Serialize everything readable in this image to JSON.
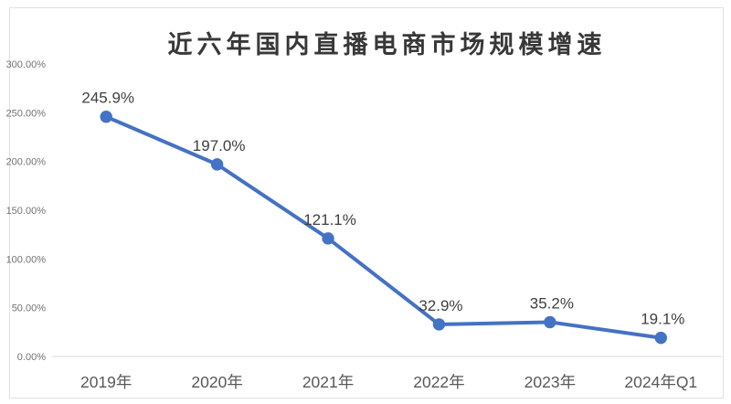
{
  "chart_data": {
    "type": "line",
    "title": "近六年国内直播电商市场规模增速",
    "categories": [
      "2019年",
      "2020年",
      "2021年",
      "2022年",
      "2023年",
      "2024年Q1"
    ],
    "values": [
      245.9,
      197.0,
      121.1,
      32.9,
      35.2,
      19.1
    ],
    "data_labels": [
      "245.9%",
      "197.0%",
      "121.1%",
      "32.9%",
      "35.2%",
      "19.1%"
    ],
    "xlabel": "",
    "ylabel": "",
    "ylim": [
      0,
      300
    ],
    "y_ticks": [
      {
        "value": 0,
        "label": "0.00%"
      },
      {
        "value": 50,
        "label": "50.00%"
      },
      {
        "value": 100,
        "label": "100.00%"
      },
      {
        "value": 150,
        "label": "150.00%"
      },
      {
        "value": 200,
        "label": "200.00%"
      },
      {
        "value": 250,
        "label": "250.00%"
      },
      {
        "value": 300,
        "label": "300.00%"
      }
    ],
    "grid": false,
    "legend": "none",
    "marker": "circle",
    "colors": {
      "line": "#4472C4",
      "marker": "#4472C4",
      "axis_line": "#d9d9d9",
      "frame_border": "#e1e1e1",
      "y_tick_label": "#737373",
      "category_label": "#595959",
      "data_label": "#404040",
      "title": "#383838",
      "background": "#ffffff"
    }
  }
}
